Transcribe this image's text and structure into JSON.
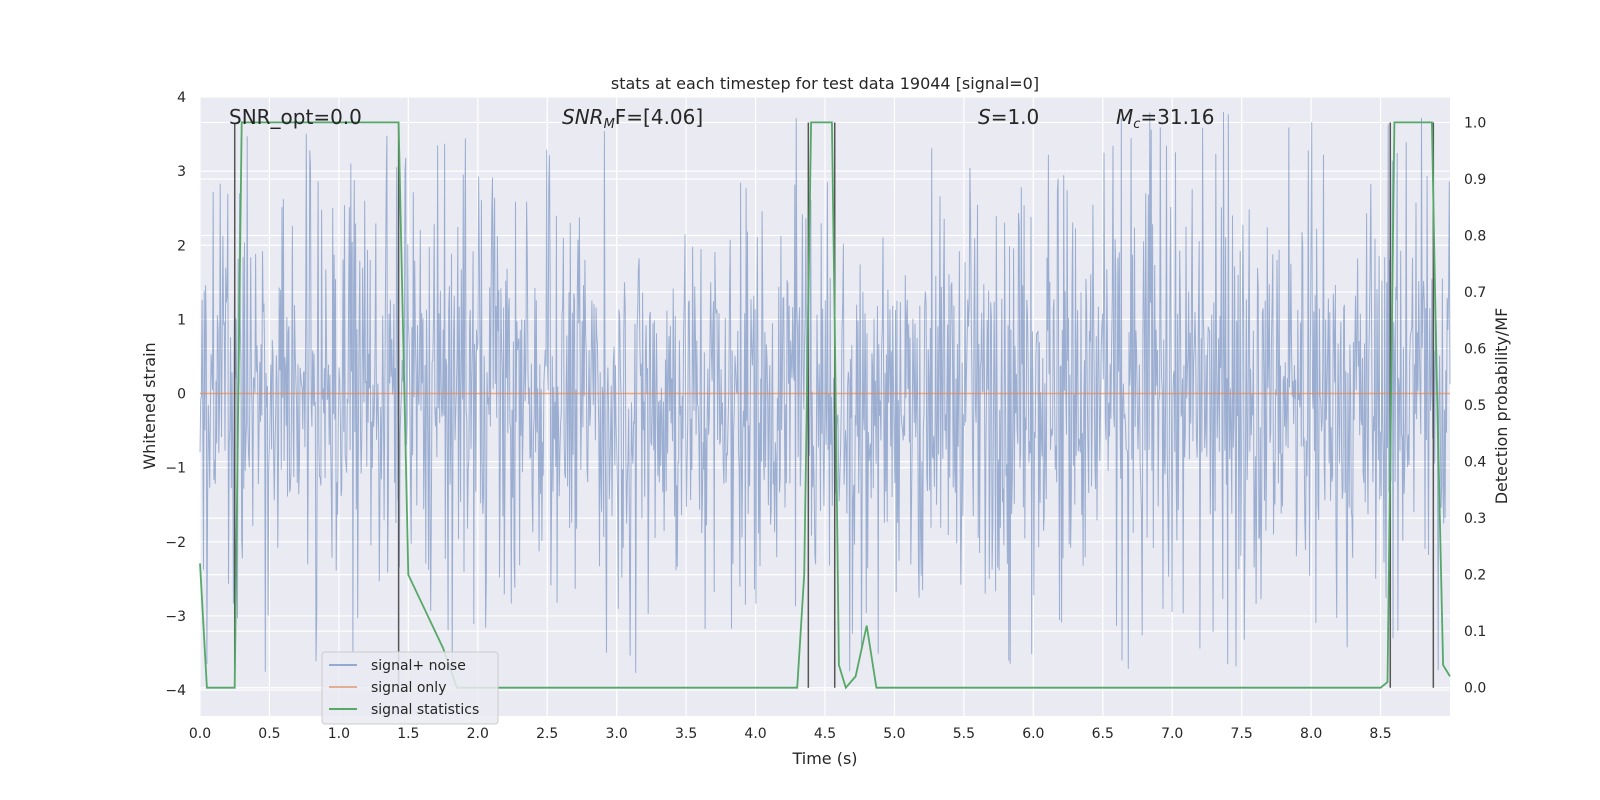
{
  "chart_data": {
    "type": "line",
    "title": "stats at each timestep for test data 19044 [signal=0]",
    "xlabel": "Time (s)",
    "ylabel_left": "Whitened strain",
    "ylabel_right": "Detection probability/MF",
    "xlim": [
      0.0,
      9.0
    ],
    "ylim_left": [
      -4.35,
      4.0
    ],
    "ylim_right": [
      -0.05,
      1.045
    ],
    "xticks": [
      "0.0",
      "0.5",
      "1.0",
      "1.5",
      "2.0",
      "2.5",
      "3.0",
      "3.5",
      "4.0",
      "4.5",
      "5.0",
      "5.5",
      "6.0",
      "6.5",
      "7.0",
      "7.5",
      "8.0",
      "8.5"
    ],
    "yticks_left": [
      "4",
      "3",
      "2",
      "1",
      "0",
      "−1",
      "−2",
      "−3",
      "−4"
    ],
    "yticks_right": [
      "1.0",
      "0.9",
      "0.8",
      "0.7",
      "0.6",
      "0.5",
      "0.4",
      "0.3",
      "0.2",
      "0.1",
      "0.0"
    ],
    "annotations": {
      "snr_opt": "SNR_opt=0.0",
      "snr_mf_label": "SNR",
      "snr_mf_sub": "M",
      "snr_mf_rest": "F=[4.06]",
      "s_label": "S",
      "s_value": "=1.0",
      "mc_label": "M",
      "mc_sub": "c",
      "mc_value": "=31.16"
    },
    "legend": [
      "signal+ noise",
      "signal only",
      "signal statistics"
    ],
    "series": [
      {
        "name": "signal+ noise",
        "axis": "left",
        "description": "whitened strain noise, envelope approx ±2.5 with peaks to ±3.8",
        "amplitude_typical": 2.0,
        "amplitude_max": 3.8
      },
      {
        "name": "signal only",
        "axis": "left",
        "x": [
          0.0,
          9.0
        ],
        "y": [
          0.0,
          0.0
        ]
      },
      {
        "name": "signal statistics",
        "axis": "right",
        "x": [
          0.0,
          0.05,
          0.25,
          0.3,
          1.43,
          1.5,
          1.75,
          1.85,
          2.0,
          2.8,
          4.3,
          4.35,
          4.4,
          4.55,
          4.57,
          4.6,
          4.65,
          4.72,
          4.8,
          4.87,
          5.0,
          5.5,
          5.6,
          6.0,
          8.5,
          8.55,
          8.6,
          8.87,
          8.9,
          8.95,
          9.0
        ],
        "y": [
          0.22,
          0.0,
          0.0,
          1.0,
          1.0,
          0.2,
          0.07,
          0.0,
          0.0,
          0.0,
          0.0,
          0.2,
          1.0,
          1.0,
          0.65,
          0.04,
          0.0,
          0.02,
          0.11,
          0.0,
          0.0,
          0.0,
          0.0,
          0.0,
          0.0,
          0.01,
          1.0,
          1.0,
          0.6,
          0.04,
          0.02
        ]
      }
    ],
    "vlines": [
      0.25,
      1.43,
      4.38,
      4.57,
      8.57,
      8.88
    ]
  },
  "colors": {
    "noise": "#4c72b0",
    "signal": "#dd8452",
    "stats": "#55a868",
    "vline": "#555555",
    "panel": "#eaeaf2"
  }
}
